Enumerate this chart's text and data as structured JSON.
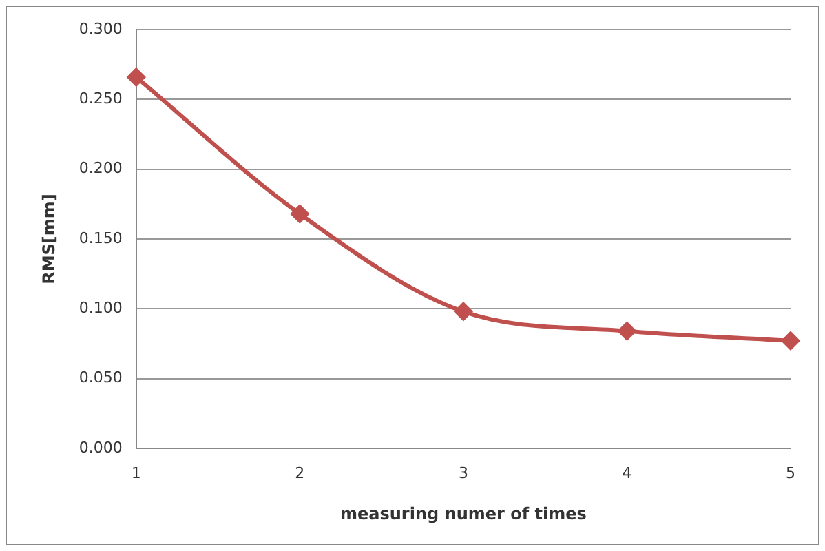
{
  "chart_data": {
    "type": "line",
    "xlabel": "measuring numer of times",
    "ylabel": "RMS[mm]",
    "categories": [
      "1",
      "2",
      "3",
      "4",
      "5"
    ],
    "series": [
      {
        "color": "#c0504d",
        "values": [
          0.266,
          0.168,
          0.098,
          0.084,
          0.077
        ]
      }
    ],
    "ylim": [
      0,
      0.3
    ],
    "yticks": [
      {
        "value": 0,
        "label": "0.000"
      },
      {
        "value": 0.05,
        "label": "0.050"
      },
      {
        "value": 0.1,
        "label": "0.100"
      },
      {
        "value": 0.15,
        "label": "0.150"
      },
      {
        "value": 0.2,
        "label": "0.200"
      },
      {
        "value": 0.25,
        "label": "0.250"
      },
      {
        "value": 0.3,
        "label": "0.300"
      }
    ],
    "grid": "y",
    "marker": "diamond",
    "line_style": "solid",
    "legend": false
  }
}
